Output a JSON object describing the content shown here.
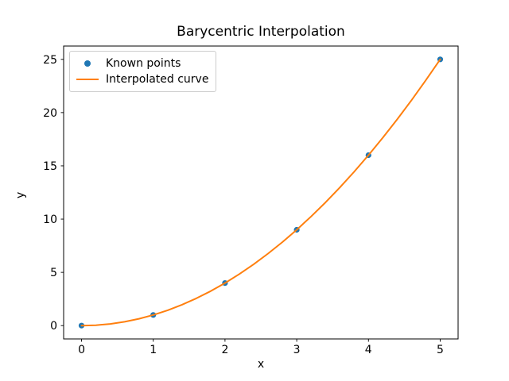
{
  "chart_data": {
    "type": "scatter",
    "title": "Barycentric Interpolation",
    "xlabel": "x",
    "ylabel": "y",
    "xlim": [
      -0.25,
      5.25
    ],
    "ylim": [
      -1.25,
      26.25
    ],
    "xticks": [
      0,
      1,
      2,
      3,
      4,
      5
    ],
    "yticks": [
      0,
      5,
      10,
      15,
      20,
      25
    ],
    "grid": false,
    "legend_position": "upper left",
    "series": [
      {
        "name": "Known points",
        "type": "scatter",
        "color": "#1f77b4",
        "x": [
          0,
          1,
          2,
          3,
          4,
          5
        ],
        "y": [
          0,
          1,
          4,
          9,
          16,
          25
        ]
      },
      {
        "name": "Interpolated curve",
        "type": "line",
        "color": "#ff7f0e",
        "x": [
          0,
          0.2,
          0.4,
          0.6,
          0.8,
          1.0,
          1.2,
          1.4,
          1.6,
          1.8,
          2.0,
          2.2,
          2.4,
          2.6,
          2.8,
          3.0,
          3.2,
          3.4,
          3.6,
          3.8,
          4.0,
          4.2,
          4.4,
          4.6,
          4.8,
          5.0
        ],
        "y": [
          0,
          0.04,
          0.16,
          0.36,
          0.64,
          1.0,
          1.44,
          1.96,
          2.56,
          3.24,
          4.0,
          4.84,
          5.76,
          6.76,
          7.84,
          9.0,
          10.24,
          11.56,
          12.96,
          14.44,
          16.0,
          17.64,
          19.36,
          21.16,
          23.04,
          25.0
        ]
      }
    ]
  },
  "colors": {
    "background": "#ffffff",
    "axis": "#000000",
    "tick_label": "#000000",
    "legend_border": "#cccccc",
    "scatter": "#1f77b4",
    "line": "#ff7f0e"
  }
}
